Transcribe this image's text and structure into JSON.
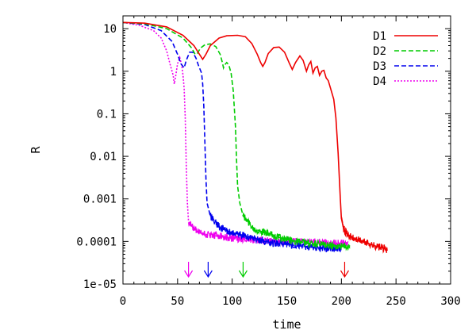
{
  "chart_data": {
    "type": "line",
    "title": "",
    "xlabel": "time",
    "ylabel": "R",
    "xlim": [
      0,
      300
    ],
    "ylim": [
      1e-05,
      20
    ],
    "yscale": "log",
    "grid": false,
    "legend_position": "top-right",
    "x_ticks": [
      0,
      50,
      100,
      150,
      200,
      250,
      300
    ],
    "x_tick_labels": [
      "0",
      "50",
      "100",
      "150",
      "200",
      "250",
      "300"
    ],
    "y_ticks": [
      10,
      1,
      0.1,
      0.01,
      0.001,
      0.0001,
      1e-05
    ],
    "y_tick_labels": [
      "10",
      "1",
      "0.1",
      "0.01",
      "0.001",
      "0.0001",
      "1e-05"
    ],
    "series": [
      {
        "name": "D1",
        "color": "#ee0000",
        "dash": "solid",
        "marker_time": 203,
        "points": [
          [
            0,
            14
          ],
          [
            20,
            13.5
          ],
          [
            40,
            11
          ],
          [
            55,
            7
          ],
          [
            65,
            4
          ],
          [
            70,
            2.5
          ],
          [
            73,
            1.9
          ],
          [
            76,
            2.5
          ],
          [
            80,
            4
          ],
          [
            88,
            6
          ],
          [
            95,
            6.8
          ],
          [
            105,
            7
          ],
          [
            112,
            6.5
          ],
          [
            118,
            4.5
          ],
          [
            123,
            2.5
          ],
          [
            126,
            1.6
          ],
          [
            128,
            1.3
          ],
          [
            130,
            1.6
          ],
          [
            133,
            2.6
          ],
          [
            138,
            3.6
          ],
          [
            143,
            3.7
          ],
          [
            148,
            2.8
          ],
          [
            152,
            1.6
          ],
          [
            155,
            1.1
          ],
          [
            158,
            1.6
          ],
          [
            162,
            2.3
          ],
          [
            165,
            1.8
          ],
          [
            168,
            1.0
          ],
          [
            170,
            1.4
          ],
          [
            172,
            1.7
          ],
          [
            174,
            0.9
          ],
          [
            176,
            1.2
          ],
          [
            178,
            1.3
          ],
          [
            180,
            0.8
          ],
          [
            182,
            1.0
          ],
          [
            184,
            1.05
          ],
          [
            186,
            0.7
          ],
          [
            188,
            0.6
          ],
          [
            190,
            0.4
          ],
          [
            193,
            0.22
          ],
          [
            195,
            0.08
          ],
          [
            197,
            0.012
          ],
          [
            199,
            0.001
          ],
          [
            200,
            0.00035
          ],
          [
            202,
            0.0002
          ],
          [
            205,
            0.00015
          ],
          [
            210,
            0.00012
          ],
          [
            220,
            0.0001
          ],
          [
            230,
            8e-05
          ],
          [
            242,
            6.5e-05
          ]
        ]
      },
      {
        "name": "D2",
        "color": "#00cc00",
        "dash": "dashed",
        "marker_time": 110,
        "points": [
          [
            0,
            14
          ],
          [
            20,
            13
          ],
          [
            40,
            10
          ],
          [
            55,
            6
          ],
          [
            63,
            3.5
          ],
          [
            66,
            2.5
          ],
          [
            68,
            2.6
          ],
          [
            71,
            3.5
          ],
          [
            75,
            4.2
          ],
          [
            80,
            4.4
          ],
          [
            85,
            3.8
          ],
          [
            89,
            2.5
          ],
          [
            91,
            1.6
          ],
          [
            92,
            1.2
          ],
          [
            93,
            1.4
          ],
          [
            95,
            1.6
          ],
          [
            97,
            1.4
          ],
          [
            99,
            0.9
          ],
          [
            101,
            0.35
          ],
          [
            103,
            0.05
          ],
          [
            104,
            0.008
          ],
          [
            105,
            0.002
          ],
          [
            107,
            0.0008
          ],
          [
            110,
            0.0004
          ],
          [
            115,
            0.00028
          ],
          [
            120,
            0.0002
          ],
          [
            130,
            0.00016
          ],
          [
            140,
            0.00013
          ],
          [
            150,
            0.00011
          ],
          [
            160,
            0.0001
          ],
          [
            170,
            9e-05
          ],
          [
            180,
            8.5e-05
          ],
          [
            190,
            8e-05
          ],
          [
            200,
            7.8e-05
          ],
          [
            208,
            7.8e-05
          ]
        ]
      },
      {
        "name": "D3",
        "color": "#0000ee",
        "dash": "dashed",
        "marker_time": 78,
        "points": [
          [
            0,
            14
          ],
          [
            20,
            12.5
          ],
          [
            35,
            9
          ],
          [
            45,
            5
          ],
          [
            50,
            2.5
          ],
          [
            53,
            1.5
          ],
          [
            56,
            1.2
          ],
          [
            58,
            1.8
          ],
          [
            61,
            2.8
          ],
          [
            64,
            2.8
          ],
          [
            67,
            2.0
          ],
          [
            69,
            1.4
          ],
          [
            70,
            1.2
          ],
          [
            72,
            0.9
          ],
          [
            73,
            0.5
          ],
          [
            74,
            0.15
          ],
          [
            75,
            0.02
          ],
          [
            76,
            0.003
          ],
          [
            77,
            0.0008
          ],
          [
            80,
            0.0004
          ],
          [
            85,
            0.00028
          ],
          [
            90,
            0.0002
          ],
          [
            100,
            0.00016
          ],
          [
            110,
            0.00014
          ],
          [
            120,
            0.00012
          ],
          [
            130,
            0.0001
          ],
          [
            140,
            9e-05
          ],
          [
            150,
            8.5e-05
          ],
          [
            160,
            8e-05
          ],
          [
            170,
            7.5e-05
          ],
          [
            180,
            7e-05
          ],
          [
            190,
            7e-05
          ],
          [
            200,
            6.8e-05
          ]
        ]
      },
      {
        "name": "D4",
        "color": "#ee00ee",
        "dash": "dotted",
        "marker_time": 60,
        "points": [
          [
            0,
            14
          ],
          [
            15,
            12
          ],
          [
            28,
            9
          ],
          [
            35,
            6
          ],
          [
            40,
            3
          ],
          [
            43,
            1.5
          ],
          [
            46,
            0.8
          ],
          [
            47,
            0.5
          ],
          [
            48,
            0.7
          ],
          [
            50,
            1.5
          ],
          [
            52,
            2.1
          ],
          [
            54,
            1.3
          ],
          [
            55,
            0.8
          ],
          [
            56,
            0.4
          ],
          [
            57,
            0.08
          ],
          [
            58,
            0.006
          ],
          [
            59,
            0.0008
          ],
          [
            60,
            0.0003
          ],
          [
            63,
            0.00022
          ],
          [
            70,
            0.00016
          ],
          [
            80,
            0.00014
          ],
          [
            90,
            0.00013
          ],
          [
            100,
            0.00012
          ],
          [
            120,
            0.00011
          ],
          [
            140,
            0.0001
          ],
          [
            160,
            0.0001
          ],
          [
            180,
            9.5e-05
          ],
          [
            200,
            9e-05
          ],
          [
            206,
            9e-05
          ]
        ]
      }
    ]
  }
}
